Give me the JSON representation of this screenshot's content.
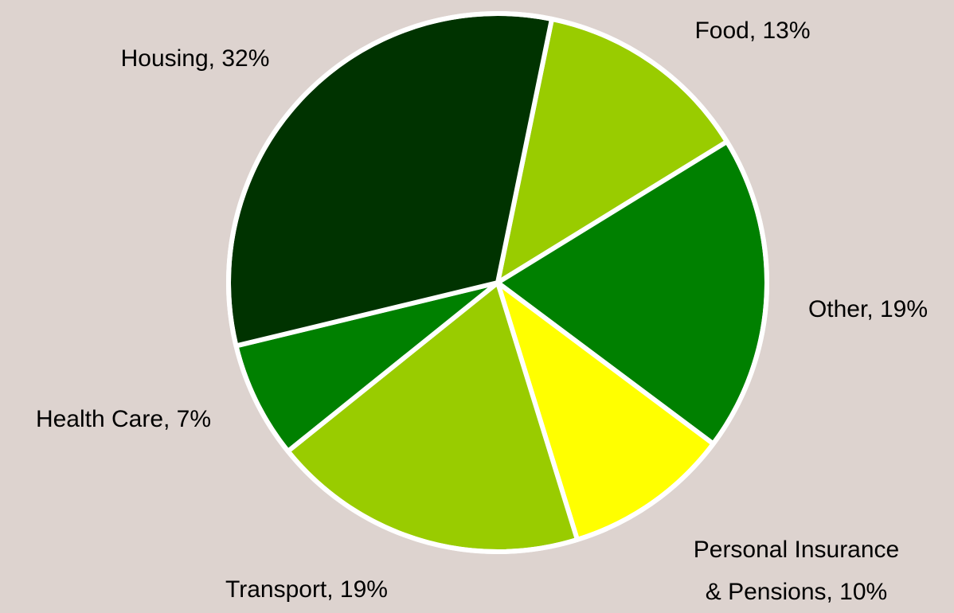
{
  "chart_data": {
    "type": "pie",
    "labels": [
      [
        "Food, 13%"
      ],
      [
        "Other, 19%"
      ],
      [
        "Personal Insurance",
        "& Pensions, 10%"
      ],
      [
        "Transport, 19%"
      ],
      [
        "Health Care, 7%"
      ],
      [
        "Housing, 32%"
      ]
    ],
    "values": [
      13,
      19,
      10,
      19,
      7,
      32
    ],
    "colors": [
      "#99cc00",
      "#008000",
      "#ffff00",
      "#99cc00",
      "#008000",
      "#003300"
    ]
  }
}
